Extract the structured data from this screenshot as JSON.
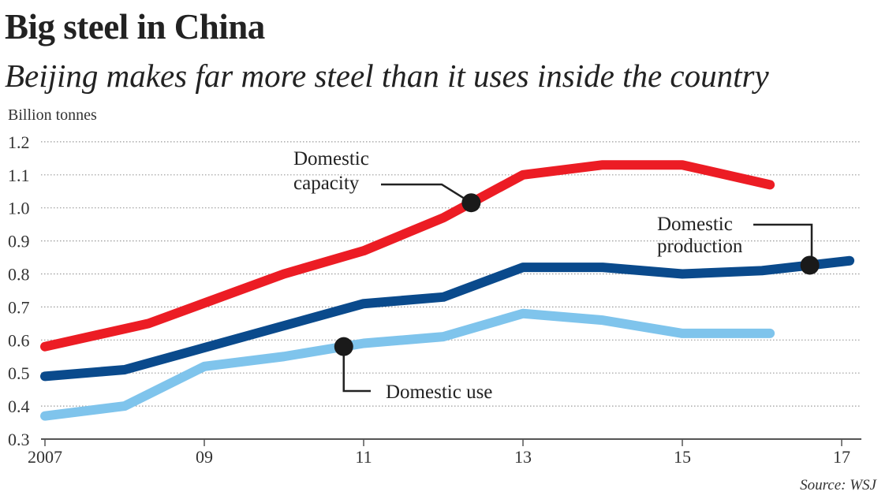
{
  "chart_data": {
    "type": "line",
    "title": "Big steel in China",
    "subtitle": "Beijing makes far more steel than it uses inside the country",
    "ylabel": "Billion tonnes",
    "xlabel": "",
    "source": "Source: WSJ",
    "ylim": [
      0.3,
      1.2
    ],
    "xlim": [
      2007,
      2017.2
    ],
    "yticks": [
      0.3,
      0.4,
      0.5,
      0.6,
      0.7,
      0.8,
      0.9,
      1.0,
      1.1,
      1.2
    ],
    "ytick_labels": [
      "0.3",
      "0.4",
      "0.5",
      "0.6",
      "0.7",
      "0.8",
      "0.9",
      "1.0",
      "1.1",
      "1.2"
    ],
    "xticks": [
      2007,
      2009,
      2011,
      2013,
      2015,
      2017
    ],
    "xtick_labels": [
      "2007",
      "09",
      "11",
      "13",
      "15",
      "17"
    ],
    "grid": "horizontal dotted",
    "series": [
      {
        "name": "Domestic capacity",
        "label_lines": [
          "Domestic",
          "capacity"
        ],
        "color": "#ec1c24",
        "x": [
          2007,
          2008.3,
          2010,
          2011,
          2012,
          2013,
          2014,
          2015,
          2016.1
        ],
        "values": [
          0.58,
          0.65,
          0.8,
          0.87,
          0.97,
          1.1,
          1.13,
          1.13,
          1.07
        ],
        "marker_x": 2012.35
      },
      {
        "name": "Domestic production",
        "label_lines": [
          "Domestic",
          "production"
        ],
        "color": "#0a4a8c",
        "x": [
          2007,
          2008,
          2011,
          2012,
          2013,
          2014,
          2015,
          2016,
          2017.1
        ],
        "values": [
          0.49,
          0.51,
          0.71,
          0.73,
          0.82,
          0.82,
          0.8,
          0.81,
          0.84
        ],
        "marker_x": 2016.6
      },
      {
        "name": "Domestic use",
        "label_lines": [
          "Domestic use"
        ],
        "color": "#7fc4ec",
        "x": [
          2007,
          2008,
          2009,
          2010,
          2011,
          2012,
          2013,
          2014,
          2015,
          2016.1
        ],
        "values": [
          0.37,
          0.4,
          0.52,
          0.55,
          0.59,
          0.61,
          0.68,
          0.66,
          0.62,
          0.62
        ],
        "marker_x": 2010.75
      }
    ]
  }
}
